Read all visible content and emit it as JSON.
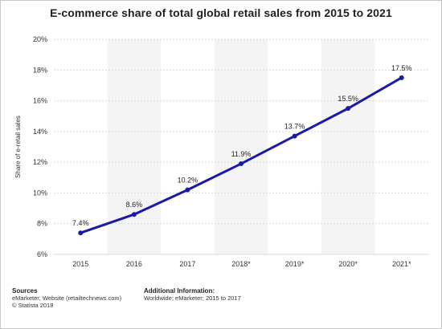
{
  "chart_data": {
    "type": "line",
    "title": "E-commerce share of total global retail sales from 2015 to 2021",
    "xlabel": "",
    "ylabel": "Share of e-retail sales",
    "categories": [
      "2015",
      "2016",
      "2017",
      "2018*",
      "2019*",
      "2020*",
      "2021*"
    ],
    "series": [
      {
        "values": [
          7.4,
          8.6,
          10.2,
          11.9,
          13.7,
          15.5,
          17.5
        ],
        "data_labels": [
          "7.4%",
          "8.6%",
          "10.2%",
          "11.9%",
          "13.7%",
          "15.5%",
          "17.5%"
        ]
      }
    ],
    "ylim": [
      6,
      20
    ],
    "yticks": [
      6,
      8,
      10,
      12,
      14,
      16,
      18,
      20
    ],
    "ytick_labels": [
      "6%",
      "8%",
      "10%",
      "12%",
      "14%",
      "16%",
      "18%",
      "20%"
    ],
    "grid": true,
    "colors": {
      "line": "#1a1aa6",
      "band": "#f4f4f4",
      "grid": "#d9d9d9"
    }
  },
  "footer": {
    "sources_title": "Sources",
    "sources_lines": [
      "eMarketer; Website (retailtechnews.com)",
      "© Statista 2018"
    ],
    "info_title": "Additional Information:",
    "info_lines": [
      "Worldwide; eMarketer; 2015 to 2017"
    ]
  }
}
